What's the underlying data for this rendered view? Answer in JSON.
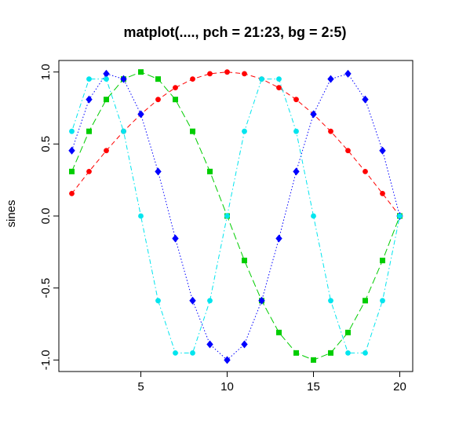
{
  "chart_data": {
    "type": "line",
    "title": "matplot(...., pch = 21:23, bg = 2:5)",
    "xlabel": "",
    "ylabel": "sines",
    "xlim": [
      0.25,
      20.75
    ],
    "ylim": [
      -1.08,
      1.08
    ],
    "grid": false,
    "legend": "none",
    "x_ticks": [
      5,
      10,
      15,
      20
    ],
    "x_tick_labels": [
      "5",
      "10",
      "15",
      "20"
    ],
    "y_ticks": [
      -1.0,
      -0.5,
      0.0,
      0.5,
      1.0
    ],
    "y_tick_labels": [
      "-1.0",
      "-0.5",
      "0.0",
      "0.5",
      "1.0"
    ],
    "x": [
      1,
      2,
      3,
      4,
      5,
      6,
      7,
      8,
      9,
      10,
      11,
      12,
      13,
      14,
      15,
      16,
      17,
      18,
      19,
      20
    ],
    "series": [
      {
        "color": "#ff0000",
        "marker": "circle",
        "line": "dashed",
        "values": [
          0.156,
          0.309,
          0.454,
          0.588,
          0.707,
          0.809,
          0.891,
          0.951,
          0.988,
          1.0,
          0.988,
          0.951,
          0.891,
          0.809,
          0.707,
          0.588,
          0.454,
          0.309,
          0.156,
          0.0
        ]
      },
      {
        "color": "#00cd00",
        "marker": "square",
        "line": "longdash",
        "values": [
          0.309,
          0.588,
          0.809,
          0.951,
          1.0,
          0.951,
          0.809,
          0.588,
          0.309,
          0.0,
          -0.309,
          -0.588,
          -0.809,
          -0.951,
          -1.0,
          -0.951,
          -0.809,
          -0.588,
          -0.309,
          0.0
        ]
      },
      {
        "color": "#0000ff",
        "marker": "diamond",
        "line": "dotted",
        "values": [
          0.454,
          0.809,
          0.988,
          0.951,
          0.707,
          0.309,
          -0.156,
          -0.588,
          -0.891,
          -1.0,
          -0.891,
          -0.588,
          -0.156,
          0.309,
          0.707,
          0.951,
          0.988,
          0.809,
          0.454,
          0.0
        ]
      },
      {
        "color": "#00e5ee",
        "marker": "circle",
        "line": "dotdash",
        "values": [
          0.588,
          0.951,
          0.951,
          0.588,
          0.0,
          -0.588,
          -0.951,
          -0.951,
          -0.588,
          0.0,
          0.588,
          0.951,
          0.951,
          0.588,
          0.0,
          -0.588,
          -0.951,
          -0.951,
          -0.588,
          0.0
        ]
      }
    ]
  }
}
